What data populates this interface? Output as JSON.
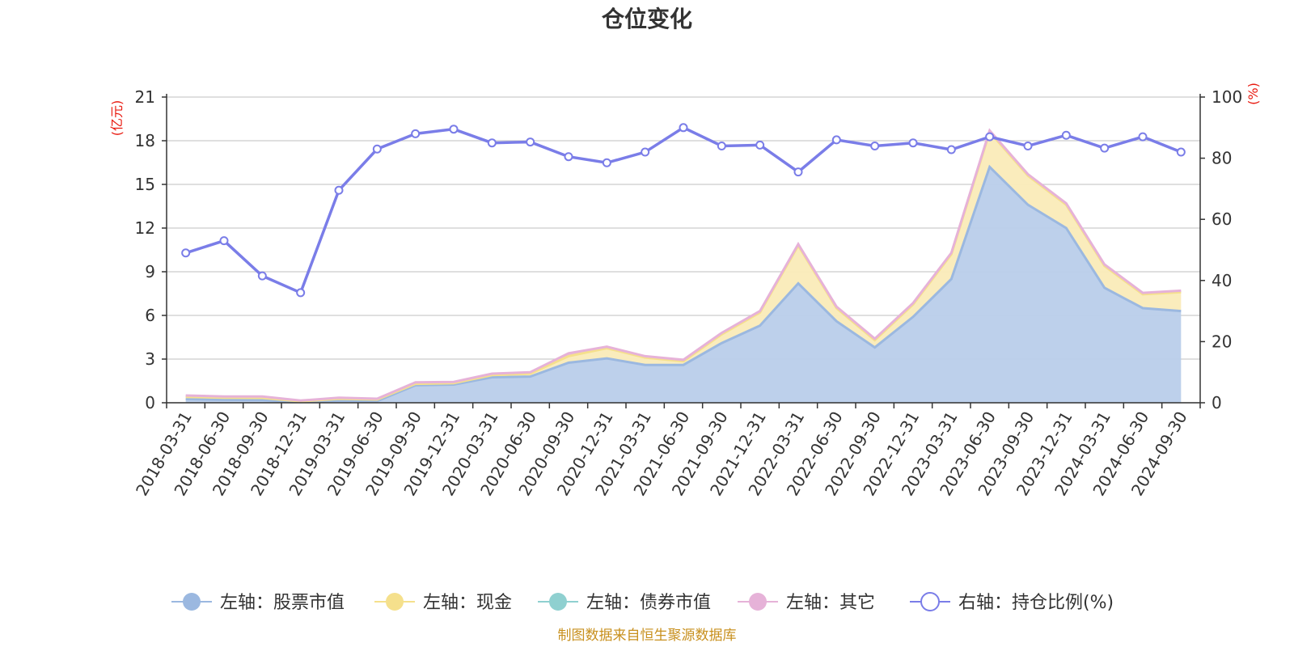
{
  "chart_data": {
    "type": "area",
    "title": "仓位变化",
    "left_unit": "(亿元)",
    "right_unit": "(%)",
    "footer": "制图数据来自恒生聚源数据库",
    "ylim_left": [
      0,
      21
    ],
    "ylim_right": [
      0,
      100
    ],
    "left_ticks": [
      "0",
      "3",
      "6",
      "9",
      "12",
      "15",
      "18",
      "21"
    ],
    "right_ticks": [
      "0",
      "20",
      "40",
      "60",
      "80",
      "100"
    ],
    "categories": [
      "2018-03-31",
      "2018-06-30",
      "2018-09-30",
      "2018-12-31",
      "2019-03-31",
      "2019-06-30",
      "2019-09-30",
      "2019-12-31",
      "2020-03-31",
      "2020-06-30",
      "2020-09-30",
      "2020-12-31",
      "2021-03-31",
      "2021-06-30",
      "2021-09-30",
      "2021-12-31",
      "2022-03-31",
      "2022-06-30",
      "2022-09-30",
      "2022-12-31",
      "2023-03-31",
      "2023-06-30",
      "2023-09-30",
      "2023-12-31",
      "2024-03-31",
      "2024-06-30",
      "2024-09-30"
    ],
    "series": [
      {
        "name": "左轴：股票市值",
        "axis": "left",
        "color": "#9bb8e0",
        "fill": "#b9cdea",
        "values": [
          0.25,
          0.2,
          0.18,
          0.05,
          0.15,
          0.12,
          1.2,
          1.25,
          1.75,
          1.8,
          2.75,
          3.05,
          2.6,
          2.6,
          4.1,
          5.3,
          8.2,
          5.6,
          3.8,
          5.9,
          8.5,
          16.2,
          13.6,
          12.0,
          7.9,
          6.5,
          6.3
        ]
      },
      {
        "name": "左轴：现金",
        "axis": "left",
        "color": "#f5e08c",
        "fill": "#faebb8",
        "values": [
          0.15,
          0.15,
          0.15,
          0.05,
          0.12,
          0.1,
          0.1,
          0.1,
          0.15,
          0.2,
          0.45,
          0.7,
          0.5,
          0.25,
          0.6,
          0.9,
          2.6,
          0.9,
          0.5,
          0.85,
          1.7,
          2.4,
          2.0,
          1.6,
          1.5,
          0.95,
          1.3
        ]
      },
      {
        "name": "左轴：债券市值",
        "axis": "left",
        "color": "#8fd0d0",
        "fill": "#8fd0d0",
        "values": [
          0,
          0,
          0,
          0,
          0,
          0,
          0,
          0,
          0,
          0,
          0,
          0,
          0,
          0,
          0,
          0,
          0,
          0,
          0,
          0,
          0,
          0,
          0,
          0,
          0,
          0,
          0
        ]
      },
      {
        "name": "左轴：其它",
        "axis": "left",
        "color": "#e6b2d8",
        "fill": "#e6b2d8",
        "values": [
          0.1,
          0.08,
          0.1,
          0.05,
          0.08,
          0.06,
          0.1,
          0.08,
          0.1,
          0.1,
          0.2,
          0.1,
          0.1,
          0.1,
          0.1,
          0.1,
          0.1,
          0.1,
          0.1,
          0.1,
          0.1,
          0.1,
          0.1,
          0.1,
          0.1,
          0.1,
          0.1
        ]
      },
      {
        "name": "右轴：持仓比例(%)",
        "axis": "right",
        "color": "#7a7de8",
        "values": [
          49,
          53,
          41.5,
          36,
          69.5,
          83,
          88,
          89.5,
          85,
          85.3,
          80.5,
          78.5,
          82,
          90,
          84,
          84.3,
          75.5,
          86,
          84,
          85,
          82.8,
          87,
          84,
          87.5,
          83.3,
          87,
          82
        ]
      }
    ]
  }
}
